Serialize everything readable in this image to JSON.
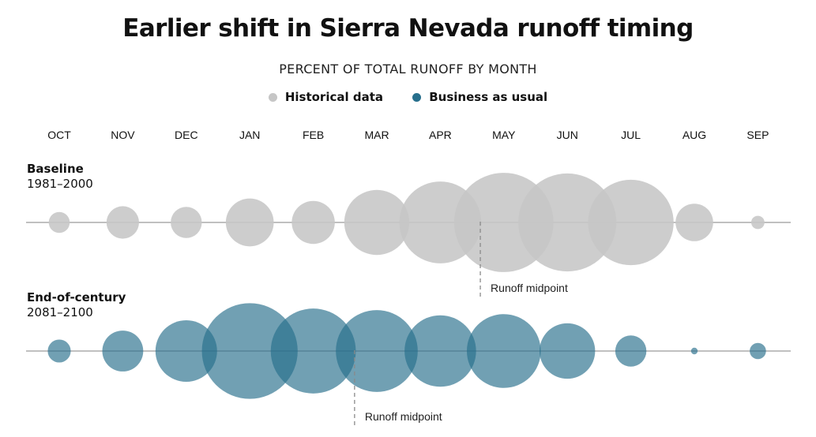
{
  "title": "Earlier shift in Sierra Nevada runoff timing",
  "subtitle": "PERCENT OF TOTAL RUNOFF BY MONTH",
  "legend": [
    {
      "label": "Historical data",
      "color": "#c6c6c6"
    },
    {
      "label": "Business as usual",
      "color": "#276f8c"
    }
  ],
  "chart_data": {
    "type": "bubble",
    "title": "Earlier shift in Sierra Nevada runoff timing",
    "subtitle": "PERCENT OF TOTAL RUNOFF BY MONTH",
    "categories": [
      "OCT",
      "NOV",
      "DEC",
      "JAN",
      "FEB",
      "MAR",
      "APR",
      "MAY",
      "JUN",
      "JUL",
      "AUG",
      "SEP"
    ],
    "series": [
      {
        "name": "Historical data",
        "row_name": "Baseline",
        "row_years": "1981–2000",
        "color": "#c6c6c6",
        "values": [
          0.5,
          1.2,
          1.1,
          2.6,
          2.1,
          4.8,
          7.6,
          11.2,
          10.9,
          8.3,
          1.6,
          0.2
        ],
        "midpoint_label": "Runoff midpoint",
        "midpoint_month_index": 6.63
      },
      {
        "name": "Business as usual",
        "row_name": "End-of-century",
        "row_years": "2081–2100",
        "color": "#276f8c",
        "values": [
          0.6,
          1.9,
          4.3,
          10.4,
          8.2,
          7.6,
          5.8,
          6.2,
          3.5,
          1.1,
          0.05,
          0.3
        ],
        "midpoint_label": "Runoff midpoint",
        "midpoint_month_index": 4.65
      }
    ]
  }
}
